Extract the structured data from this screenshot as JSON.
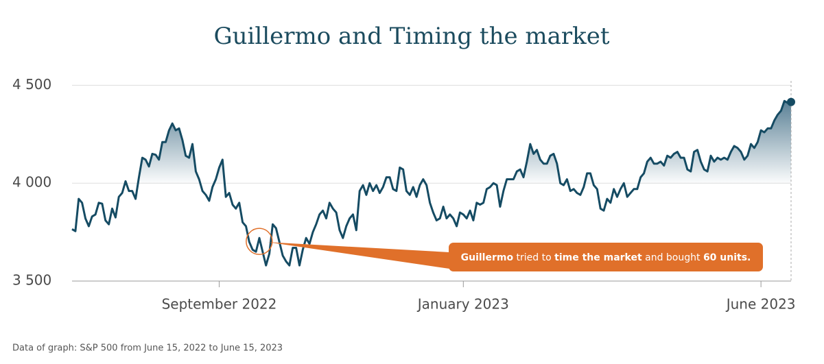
{
  "chart_data": {
    "type": "line",
    "title": "Guillermo and Timing the market",
    "footnote": "Data of graph: S&P 500 from June 15, 2022 to June 15, 2023",
    "color": "#154b63",
    "fill_color": "#2c5d78",
    "grid": true,
    "values": [
      3765,
      3755,
      3920,
      3900,
      3820,
      3780,
      3830,
      3840,
      3900,
      3895,
      3810,
      3790,
      3870,
      3825,
      3930,
      3950,
      4010,
      3960,
      3960,
      3920,
      4030,
      4130,
      4120,
      4085,
      4150,
      4145,
      4120,
      4210,
      4210,
      4270,
      4305,
      4270,
      4280,
      4220,
      4140,
      4130,
      4200,
      4060,
      4020,
      3960,
      3940,
      3910,
      3980,
      4020,
      4080,
      4120,
      3930,
      3950,
      3890,
      3870,
      3900,
      3800,
      3780,
      3700,
      3660,
      3650,
      3720,
      3650,
      3580,
      3640,
      3790,
      3770,
      3700,
      3630,
      3600,
      3580,
      3670,
      3670,
      3580,
      3660,
      3720,
      3690,
      3750,
      3790,
      3840,
      3860,
      3820,
      3900,
      3870,
      3850,
      3760,
      3720,
      3780,
      3820,
      3840,
      3760,
      3960,
      3990,
      3940,
      4000,
      3960,
      3990,
      3950,
      3980,
      4030,
      4030,
      3970,
      3960,
      4080,
      4070,
      3960,
      3940,
      3980,
      3930,
      3990,
      4020,
      3990,
      3900,
      3850,
      3810,
      3820,
      3880,
      3820,
      3840,
      3820,
      3780,
      3850,
      3840,
      3820,
      3860,
      3810,
      3900,
      3890,
      3900,
      3970,
      3980,
      4000,
      3990,
      3880,
      3960,
      4020,
      4020,
      4020,
      4060,
      4070,
      4030,
      4110,
      4200,
      4150,
      4170,
      4120,
      4100,
      4100,
      4140,
      4150,
      4100,
      4000,
      3990,
      4020,
      3960,
      3970,
      3950,
      3940,
      3980,
      4050,
      4050,
      3990,
      3970,
      3870,
      3860,
      3920,
      3900,
      3970,
      3930,
      3970,
      4000,
      3930,
      3950,
      3970,
      3970,
      4030,
      4050,
      4110,
      4130,
      4100,
      4100,
      4110,
      4090,
      4140,
      4130,
      4150,
      4160,
      4130,
      4130,
      4070,
      4060,
      4160,
      4170,
      4110,
      4070,
      4060,
      4140,
      4110,
      4130,
      4120,
      4130,
      4120,
      4160,
      4190,
      4180,
      4160,
      4120,
      4140,
      4200,
      4180,
      4210,
      4270,
      4260,
      4280,
      4280,
      4320,
      4350,
      4370,
      4420,
      4410,
      4415
    ],
    "xlim": [
      0,
      215
    ],
    "xticks": [
      {
        "value": 44,
        "label": "September 2022"
      },
      {
        "value": 117,
        "label": "January 2023"
      },
      {
        "value": 206,
        "label": "June 2023"
      }
    ],
    "ylim": [
      3500,
      4540
    ],
    "yticks": [
      {
        "value": 3500,
        "label": "3 500"
      },
      {
        "value": 4000,
        "label": "4 000"
      },
      {
        "value": 4500,
        "label": "4 500"
      }
    ],
    "annotation": {
      "color": "#e0702a",
      "parts": [
        {
          "text": "Guillermo",
          "bold": true
        },
        {
          "text": " tried to ",
          "bold": false
        },
        {
          "text": "time the market",
          "bold": true
        },
        {
          "text": " and bought ",
          "bold": false
        },
        {
          "text": "60 units.",
          "bold": true
        }
      ]
    }
  }
}
